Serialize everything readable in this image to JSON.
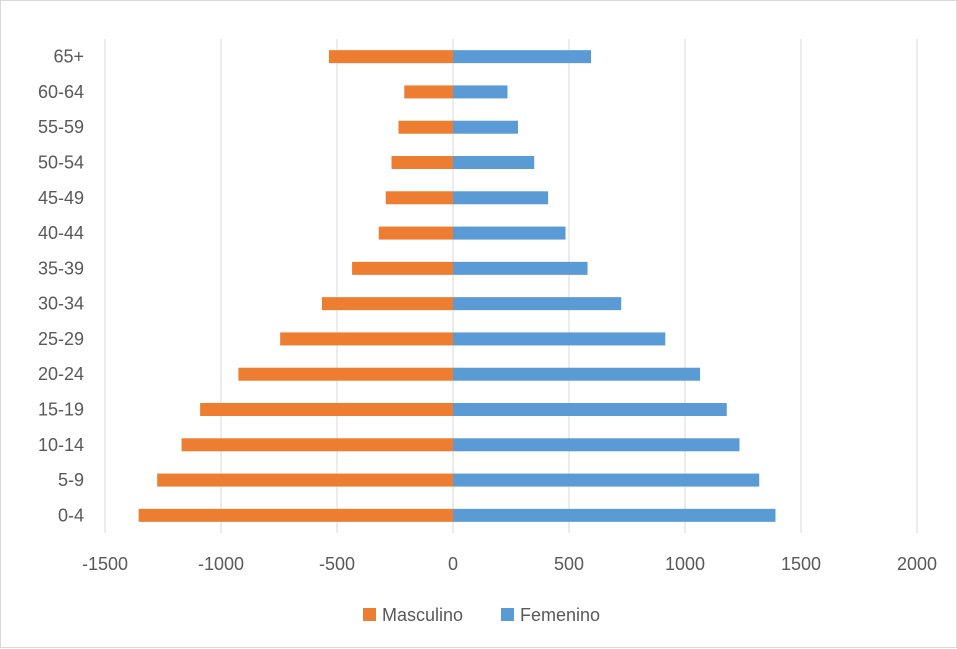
{
  "chart_data": {
    "type": "bar",
    "orientation": "horizontal",
    "categories": [
      "0-4",
      "5-9",
      "10-14",
      "15-19",
      "20-24",
      "25-29",
      "30-34",
      "35-39",
      "40-44",
      "45-49",
      "50-54",
      "55-59",
      "60-64",
      "65+"
    ],
    "series": [
      {
        "name": "Masculino",
        "color": "#ED7D31",
        "values": [
          -1355,
          -1275,
          -1170,
          -1090,
          -925,
          -745,
          -565,
          -435,
          -320,
          -290,
          -265,
          -235,
          -210,
          -535
        ]
      },
      {
        "name": "Femenino",
        "color": "#5B9BD5",
        "values": [
          1390,
          1320,
          1235,
          1180,
          1065,
          915,
          725,
          580,
          485,
          410,
          350,
          280,
          235,
          595
        ]
      }
    ],
    "xlim": [
      -1500,
      2000
    ],
    "xticks": [
      -1500,
      -1000,
      -500,
      0,
      500,
      1000,
      1500,
      2000
    ],
    "grid": true,
    "legend_position": "bottom",
    "title": "",
    "xlabel": "",
    "ylabel": ""
  }
}
